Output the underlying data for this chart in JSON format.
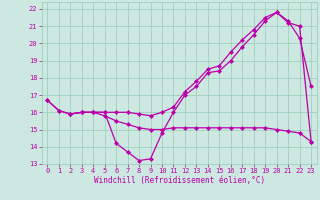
{
  "xlabel": "Windchill (Refroidissement éolien,°C)",
  "bg_color": "#cce8e0",
  "grid_color": "#99ccbb",
  "line_color": "#bb00aa",
  "xlim": [
    -0.5,
    23.5
  ],
  "ylim": [
    13,
    22.4
  ],
  "xticks": [
    0,
    1,
    2,
    3,
    4,
    5,
    6,
    7,
    8,
    9,
    10,
    11,
    12,
    13,
    14,
    15,
    16,
    17,
    18,
    19,
    20,
    21,
    22,
    23
  ],
  "yticks": [
    13,
    14,
    15,
    16,
    17,
    18,
    19,
    20,
    21,
    22
  ],
  "line1_x": [
    0,
    1,
    2,
    3,
    4,
    5,
    6,
    7,
    8,
    9,
    10,
    11,
    12,
    13,
    14,
    15,
    16,
    17,
    18,
    19,
    20,
    21,
    22,
    23
  ],
  "line1_y": [
    16.7,
    16.1,
    15.9,
    16.0,
    16.0,
    16.0,
    14.2,
    13.7,
    13.2,
    13.3,
    14.8,
    16.0,
    17.0,
    17.5,
    18.3,
    18.4,
    19.0,
    19.8,
    20.5,
    21.3,
    21.8,
    21.3,
    20.3,
    17.5
  ],
  "line2_x": [
    0,
    1,
    2,
    3,
    4,
    5,
    6,
    7,
    8,
    9,
    10,
    11,
    12,
    13,
    14,
    15,
    16,
    17,
    18,
    19,
    20,
    21,
    22,
    23
  ],
  "line2_y": [
    16.7,
    16.1,
    15.9,
    16.0,
    16.0,
    15.8,
    15.5,
    15.3,
    15.1,
    15.0,
    15.0,
    15.1,
    15.1,
    15.1,
    15.1,
    15.1,
    15.1,
    15.1,
    15.1,
    15.1,
    15.0,
    14.9,
    14.8,
    14.3
  ],
  "line3_x": [
    2,
    3,
    4,
    5,
    6,
    7,
    8,
    9,
    10,
    11,
    12,
    13,
    14,
    15,
    16,
    17,
    18,
    19,
    20,
    21,
    22,
    23
  ],
  "line3_y": [
    15.9,
    16.0,
    16.0,
    16.0,
    16.0,
    16.0,
    15.9,
    15.8,
    16.0,
    16.3,
    17.2,
    17.8,
    18.5,
    18.7,
    19.5,
    20.2,
    20.8,
    21.5,
    21.8,
    21.2,
    21.0,
    14.3
  ],
  "marker": "D",
  "markersize": 2.5,
  "linewidth": 0.9,
  "tick_fontsize": 5.0,
  "xlabel_fontsize": 5.5
}
